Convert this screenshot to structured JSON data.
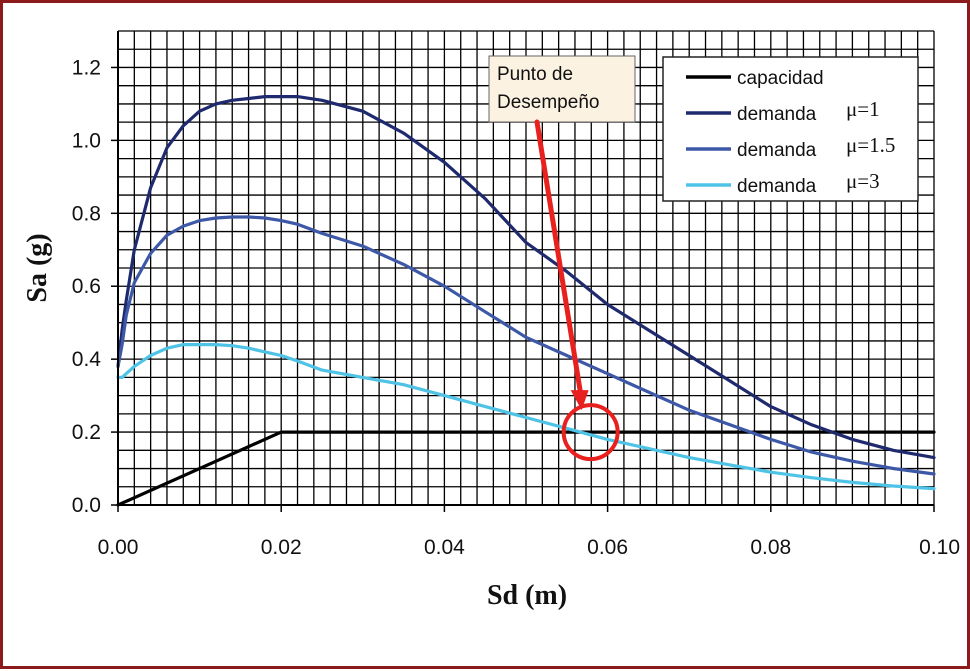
{
  "chart_data": {
    "type": "line",
    "title": "",
    "xlabel": "Sd (m)",
    "ylabel": "Sa (g)",
    "xlim": [
      0,
      0.1
    ],
    "ylim": [
      0,
      1.3
    ],
    "grid": true,
    "x_ticks": [
      0,
      0.02,
      0.04,
      0.06,
      0.08,
      0.1
    ],
    "x_tick_labels": [
      "0.00",
      "0.02",
      "0.04",
      "0.06",
      "0.08",
      "0.10"
    ],
    "y_ticks": [
      0,
      0.2,
      0.4,
      0.6,
      0.8,
      1.0,
      1.2
    ],
    "y_tick_labels": [
      "0.0",
      "0.2",
      "0.4",
      "0.6",
      "0.8",
      "1.0",
      "1.2"
    ],
    "legend_position": "top-right",
    "series": [
      {
        "name": "capacidad",
        "legend_text": "capacidad",
        "legend_mu": "",
        "color": "#000000",
        "x": [
          0,
          0.02,
          0.1
        ],
        "y": [
          0,
          0.2,
          0.2
        ]
      },
      {
        "name": "demanda μ=1",
        "legend_text": "demanda",
        "legend_mu": "μ=1",
        "color": "#1f2a6e",
        "x": [
          0,
          0.0005,
          0.001,
          0.002,
          0.004,
          0.006,
          0.008,
          0.01,
          0.012,
          0.014,
          0.016,
          0.018,
          0.02,
          0.022,
          0.025,
          0.03,
          0.035,
          0.04,
          0.045,
          0.05,
          0.055,
          0.06,
          0.065,
          0.07,
          0.075,
          0.08,
          0.085,
          0.09,
          0.095,
          0.1
        ],
        "y": [
          0.38,
          0.48,
          0.56,
          0.7,
          0.87,
          0.98,
          1.04,
          1.08,
          1.1,
          1.11,
          1.115,
          1.12,
          1.12,
          1.12,
          1.11,
          1.08,
          1.02,
          0.94,
          0.84,
          0.72,
          0.64,
          0.55,
          0.48,
          0.41,
          0.34,
          0.27,
          0.22,
          0.18,
          0.15,
          0.13
        ]
      },
      {
        "name": "demanda μ=1.5",
        "legend_text": "demanda",
        "legend_mu": "μ=1.5",
        "color": "#3e58a8",
        "x": [
          0,
          0.0005,
          0.001,
          0.002,
          0.004,
          0.006,
          0.008,
          0.01,
          0.012,
          0.014,
          0.016,
          0.018,
          0.02,
          0.022,
          0.025,
          0.03,
          0.035,
          0.04,
          0.045,
          0.05,
          0.055,
          0.06,
          0.065,
          0.07,
          0.075,
          0.08,
          0.085,
          0.09,
          0.095,
          0.1
        ],
        "y": [
          0.38,
          0.44,
          0.52,
          0.61,
          0.69,
          0.74,
          0.765,
          0.78,
          0.787,
          0.79,
          0.79,
          0.787,
          0.78,
          0.77,
          0.745,
          0.71,
          0.66,
          0.6,
          0.53,
          0.46,
          0.41,
          0.36,
          0.31,
          0.26,
          0.22,
          0.18,
          0.145,
          0.12,
          0.1,
          0.085
        ]
      },
      {
        "name": "demanda μ=3",
        "legend_text": "demanda",
        "legend_mu": "μ=3",
        "color": "#4ec3e6",
        "x": [
          0,
          0.0005,
          0.001,
          0.002,
          0.004,
          0.006,
          0.008,
          0.01,
          0.012,
          0.014,
          0.016,
          0.018,
          0.02,
          0.022,
          0.025,
          0.03,
          0.035,
          0.04,
          0.045,
          0.05,
          0.055,
          0.06,
          0.065,
          0.07,
          0.075,
          0.08,
          0.085,
          0.09,
          0.095,
          0.1
        ],
        "y": [
          0.35,
          0.35,
          0.36,
          0.38,
          0.41,
          0.43,
          0.44,
          0.44,
          0.44,
          0.437,
          0.43,
          0.42,
          0.41,
          0.395,
          0.37,
          0.35,
          0.33,
          0.3,
          0.27,
          0.24,
          0.21,
          0.18,
          0.155,
          0.13,
          0.11,
          0.09,
          0.075,
          0.062,
          0.052,
          0.045
        ]
      }
    ],
    "annotation": {
      "text_line1": "Punto de",
      "text_line2": "Desempeño",
      "target_x": 0.0578,
      "target_y": 0.2,
      "color": "#e8211f"
    }
  }
}
